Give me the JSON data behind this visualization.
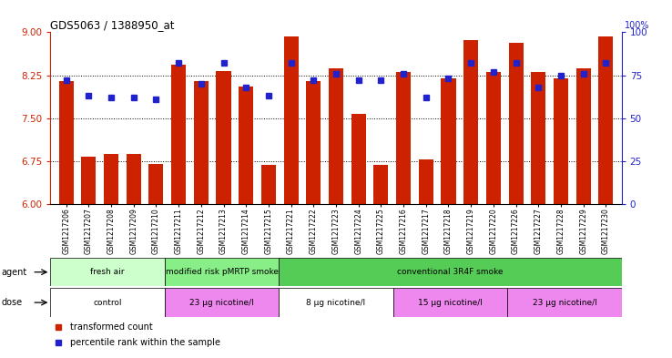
{
  "title": "GDS5063 / 1388950_at",
  "samples": [
    "GSM1217206",
    "GSM1217207",
    "GSM1217208",
    "GSM1217209",
    "GSM1217210",
    "GSM1217211",
    "GSM1217212",
    "GSM1217213",
    "GSM1217214",
    "GSM1217215",
    "GSM1217221",
    "GSM1217222",
    "GSM1217223",
    "GSM1217224",
    "GSM1217225",
    "GSM1217216",
    "GSM1217217",
    "GSM1217218",
    "GSM1217219",
    "GSM1217220",
    "GSM1217226",
    "GSM1217227",
    "GSM1217228",
    "GSM1217229",
    "GSM1217230"
  ],
  "bar_values": [
    8.15,
    6.82,
    6.87,
    6.87,
    6.7,
    8.43,
    8.15,
    8.32,
    8.05,
    6.68,
    8.93,
    8.15,
    8.37,
    7.58,
    6.68,
    8.3,
    6.78,
    8.2,
    8.87,
    8.3,
    8.82,
    8.3,
    8.2,
    8.37,
    8.92
  ],
  "percentile_values": [
    72,
    63,
    62,
    62,
    61,
    82,
    70,
    82,
    68,
    63,
    82,
    72,
    76,
    72,
    72,
    76,
    62,
    73,
    82,
    77,
    82,
    68,
    75,
    76,
    82
  ],
  "bar_color": "#cc2200",
  "dot_color": "#2222cc",
  "ylim_left": [
    6,
    9
  ],
  "ylim_right": [
    0,
    100
  ],
  "yticks_left": [
    6,
    6.75,
    7.5,
    8.25,
    9
  ],
  "yticks_right": [
    0,
    25,
    50,
    75,
    100
  ],
  "hlines": [
    6.75,
    7.5,
    8.25
  ],
  "agent_groups": [
    {
      "label": "fresh air",
      "start": 0,
      "end": 5,
      "color": "#ccffcc"
    },
    {
      "label": "modified risk pMRTP smoke",
      "start": 5,
      "end": 10,
      "color": "#88ee88"
    },
    {
      "label": "conventional 3R4F smoke",
      "start": 10,
      "end": 25,
      "color": "#55cc55"
    }
  ],
  "dose_groups": [
    {
      "label": "control",
      "start": 0,
      "end": 5,
      "color": "#ffffff"
    },
    {
      "label": "23 μg nicotine/l",
      "start": 5,
      "end": 10,
      "color": "#ee88ee"
    },
    {
      "label": "8 μg nicotine/l",
      "start": 10,
      "end": 15,
      "color": "#ffffff"
    },
    {
      "label": "15 μg nicotine/l",
      "start": 15,
      "end": 20,
      "color": "#ee88ee"
    },
    {
      "label": "23 μg nicotine/l",
      "start": 20,
      "end": 25,
      "color": "#ee88ee"
    }
  ],
  "legend_items": [
    {
      "label": "transformed count",
      "color": "#cc2200"
    },
    {
      "label": "percentile rank within the sample",
      "color": "#2222cc"
    }
  ]
}
